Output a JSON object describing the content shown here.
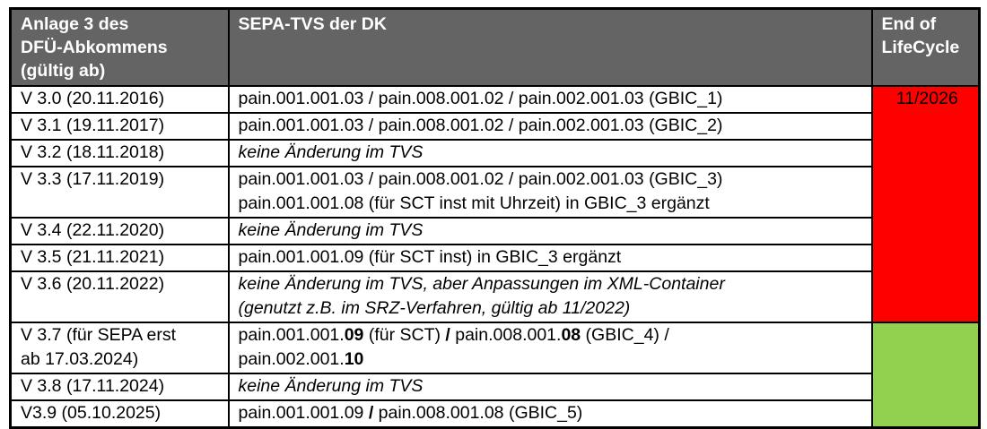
{
  "colors": {
    "header_bg": "#646464",
    "header_text": "#ffffff",
    "border": "#000000",
    "eol_red": "#ff0000",
    "eol_green": "#92d050"
  },
  "table": {
    "header": {
      "anlage": "Anlage 3 des\nDFÜ-Abkommens\n(gültig ab)",
      "sepa": "SEPA-TVS der DK",
      "eol": "End of\nLifeCycle"
    },
    "rows": [
      {
        "version": "V 3.0 (20.11.2016)",
        "italic": false,
        "lines": [
          [
            {
              "text": "pain.001.001.03 / pain.008.001.02 / pain.002.001.03 (GBIC_1)"
            }
          ]
        ]
      },
      {
        "version": "V 3.1 (19.11.2017)",
        "italic": false,
        "lines": [
          [
            {
              "text": "pain.001.001.03 / pain.008.001.02 / pain.002.001.03 (GBIC_2)"
            }
          ]
        ]
      },
      {
        "version": "V 3.2 (18.11.2018)",
        "italic": true,
        "lines": [
          [
            {
              "text": "keine Änderung im TVS"
            }
          ]
        ]
      },
      {
        "version": "V 3.3 (17.11.2019)",
        "italic": false,
        "lines": [
          [
            {
              "text": "pain.001.001.03 / pain.008.001.02 / pain.002.001.03 (GBIC_3)"
            }
          ],
          [
            {
              "text": "pain.001.001.08 (für SCT inst mit Uhrzeit) in GBIC_3 ergänzt"
            }
          ]
        ]
      },
      {
        "version": "V 3.4 (22.11.2020)",
        "italic": true,
        "lines": [
          [
            {
              "text": "keine Änderung im TVS"
            }
          ]
        ]
      },
      {
        "version": "V 3.5 (21.11.2021)",
        "italic": false,
        "lines": [
          [
            {
              "text": "pain.001.001.09 (für SCT inst) in GBIC_3 ergänzt"
            }
          ]
        ]
      },
      {
        "version": "V 3.6 (20.11.2022)",
        "italic": true,
        "lines": [
          [
            {
              "text": "keine Änderung im TVS, aber Anpassungen im XML-Container"
            }
          ],
          [
            {
              "text": "(genutzt z.B. im SRZ-Verfahren, gültig ab 11/2022)"
            }
          ]
        ]
      },
      {
        "version": "V 3.7 (für SEPA erst\nab 17.03.2024)",
        "italic": false,
        "lines": [
          [
            {
              "text": "pain.001.001."
            },
            {
              "text": "09",
              "bold": true
            },
            {
              "text": " (für SCT) "
            },
            {
              "text": "/",
              "bold": true
            },
            {
              "text": " pain.008.001."
            },
            {
              "text": "08",
              "bold": true
            },
            {
              "text": " (GBIC_4) /"
            }
          ],
          [
            {
              "text": "pain.002.001."
            },
            {
              "text": "10",
              "bold": true
            }
          ]
        ]
      },
      {
        "version": "V 3.8 (17.11.2024)",
        "italic": true,
        "lines": [
          [
            {
              "text": "keine Änderung im TVS"
            }
          ]
        ]
      },
      {
        "version": "V3.9 (05.10.2025)",
        "italic": false,
        "lines": [
          [
            {
              "text": "pain.001.001.09 "
            },
            {
              "text": "/",
              "bold": true
            },
            {
              "text": " pain.008.001.08 (GBIC_5)"
            }
          ]
        ]
      }
    ],
    "lifecycle_cells": [
      {
        "label": "11/2026",
        "background": "#ff0000",
        "row_start": 0,
        "row_span": 7
      },
      {
        "label": "",
        "background": "#92d050",
        "row_start": 7,
        "row_span": 3
      }
    ]
  }
}
